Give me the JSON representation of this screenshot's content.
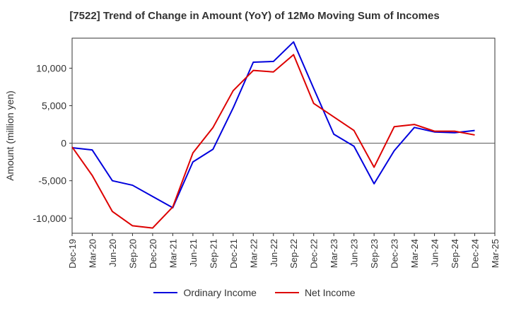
{
  "chart_data": {
    "type": "line",
    "title": "[7522]  Trend of Change in Amount (YoY) of 12Mo Moving Sum of Incomes",
    "xlabel": "",
    "ylabel": "Amount (million yen)",
    "ylim": [
      -12000,
      14000
    ],
    "yticks": [
      -10000,
      -5000,
      0,
      5000,
      10000
    ],
    "ytick_labels": [
      "-10,000",
      "-5,000",
      "0",
      "5,000",
      "10,000"
    ],
    "categories": [
      "Dec-19",
      "Mar-20",
      "Jun-20",
      "Sep-20",
      "Dec-20",
      "Mar-21",
      "Jun-21",
      "Sep-21",
      "Dec-21",
      "Mar-22",
      "Jun-22",
      "Sep-22",
      "Dec-22",
      "Mar-23",
      "Jun-23",
      "Sep-23",
      "Dec-23",
      "Mar-24",
      "Jun-24",
      "Sep-24",
      "Dec-24",
      "Mar-25"
    ],
    "grid": true,
    "legend_position": "bottom",
    "series": [
      {
        "name": "Ordinary Income",
        "color": "#0000dd",
        "values": [
          -600,
          -900,
          -5000,
          -5600,
          -7100,
          -8600,
          -2500,
          -800,
          4700,
          10800,
          10900,
          13500,
          7300,
          1200,
          -400,
          -5400,
          -1000,
          2100,
          1500,
          1400,
          1700,
          null
        ]
      },
      {
        "name": "Net Income",
        "color": "#dd0000",
        "values": [
          -500,
          -4300,
          -9100,
          -11000,
          -11300,
          -8500,
          -1300,
          2100,
          7000,
          9700,
          9500,
          11800,
          5300,
          3500,
          1700,
          -3200,
          2200,
          2500,
          1600,
          1600,
          1100,
          null
        ]
      }
    ]
  }
}
